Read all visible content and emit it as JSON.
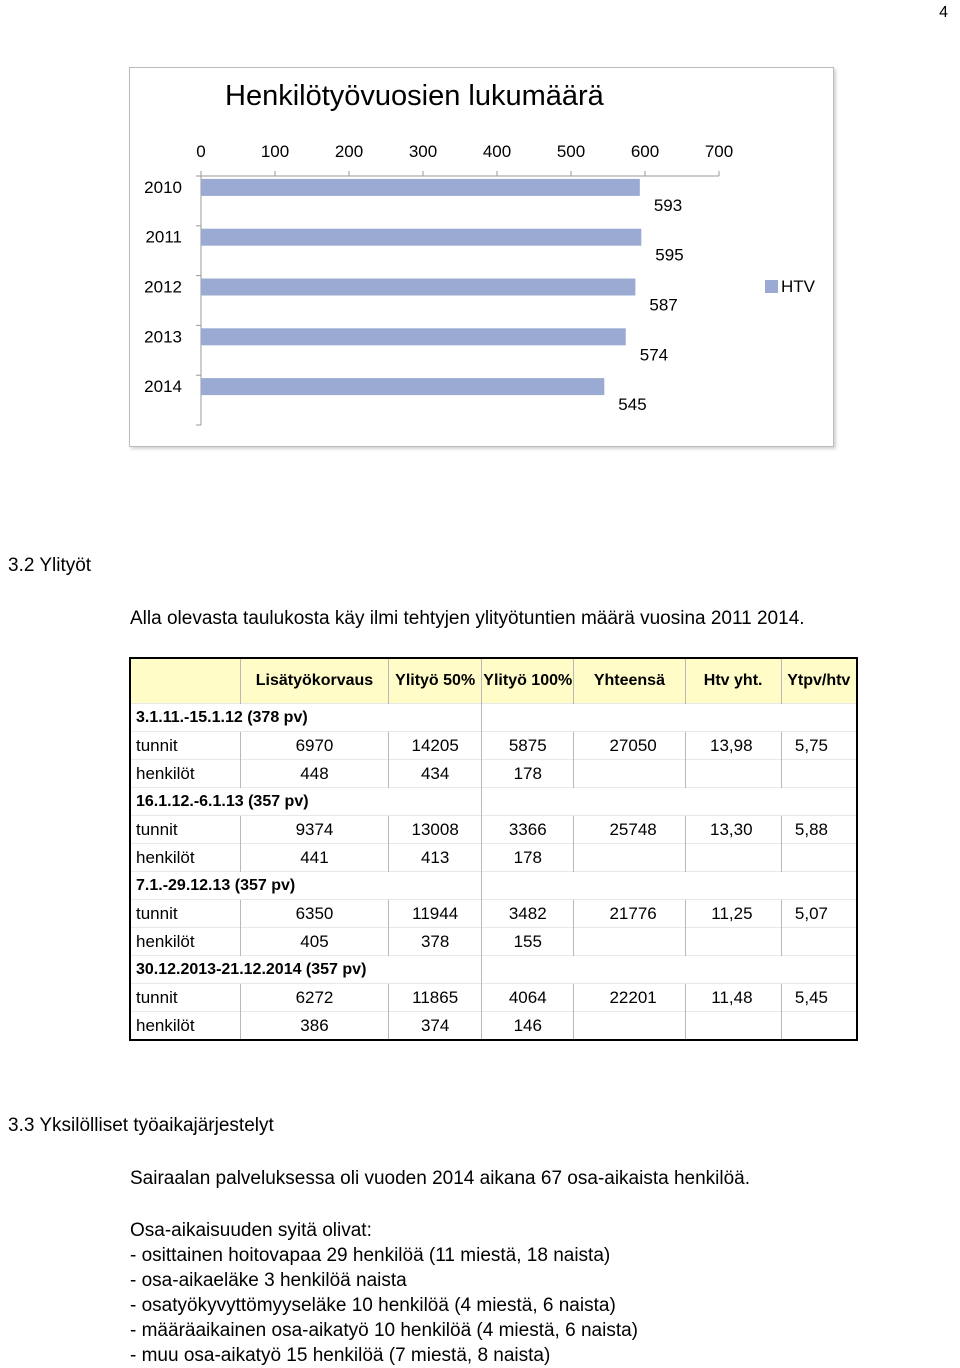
{
  "page_number": "4",
  "chart_data": {
    "type": "bar",
    "orientation": "horizontal",
    "title": "Henkilötyövuosien lukumäärä",
    "categories": [
      "2010",
      "2011",
      "2012",
      "2013",
      "2014"
    ],
    "series": [
      {
        "name": "HTV",
        "values": [
          593,
          595,
          587,
          574,
          545
        ],
        "color": "#9aaad2"
      }
    ],
    "xlim": [
      0,
      700
    ],
    "xticks": [
      "0",
      "100",
      "200",
      "300",
      "400",
      "500",
      "600",
      "700"
    ],
    "data_labels": [
      "593",
      "595",
      "587",
      "574",
      "545"
    ],
    "legend_position": "right",
    "grid": false
  },
  "section_32": {
    "heading": "3.2 Ylityöt",
    "intro": "Alla olevasta taulukosta käy ilmi tehtyjen ylityötuntien määrä vuosina 2011 2014."
  },
  "table": {
    "headers": [
      "",
      "Lisätyökorvaus",
      "Ylityö 50%",
      "Ylityö 100%",
      "Yhteensä",
      "Htv yht.",
      "Ytpv/htv"
    ],
    "groups": [
      {
        "period": "3.1.11.-15.1.12 (378 pv)",
        "tunnit": [
          "tunnit",
          "6970",
          "14205",
          "5875",
          "27050",
          "13,98",
          "5,75"
        ],
        "henkilot": [
          "henkilöt",
          "448",
          "434",
          "178",
          "",
          "",
          ""
        ]
      },
      {
        "period": "16.1.12.-6.1.13 (357 pv)",
        "tunnit": [
          "tunnit",
          "9374",
          "13008",
          "3366",
          "25748",
          "13,30",
          "5,88"
        ],
        "henkilot": [
          "henkilöt",
          "441",
          "413",
          "178",
          "",
          "",
          ""
        ]
      },
      {
        "period": "7.1.-29.12.13 (357 pv)",
        "tunnit": [
          "tunnit",
          "6350",
          "11944",
          "3482",
          "21776",
          "11,25",
          "5,07"
        ],
        "henkilot": [
          "henkilöt",
          "405",
          "378",
          "155",
          "",
          "",
          ""
        ]
      },
      {
        "period": "30.12.2013-21.12.2014 (357 pv)",
        "tunnit": [
          "tunnit",
          "6272",
          "11865",
          "4064",
          "22201",
          "11,48",
          "5,45"
        ],
        "henkilot": [
          "henkilöt",
          "386",
          "374",
          "146",
          "",
          "",
          ""
        ]
      }
    ]
  },
  "section_33": {
    "heading": "3.3 Yksilölliset työaikajärjestelyt",
    "para": "Sairaalan palveluksessa oli vuoden 2014 aikana 67 osa-aikaista henkilöä.",
    "reasons_title": "Osa-aikaisuuden syitä olivat:",
    "reasons": [
      "- osittainen hoitovapaa 29 henkilöä (11 miestä, 18 naista)",
      "- osa-aikaeläke 3 henkilöä naista",
      "- osatyökyvyttömyyseläke 10 henkilöä (4 miestä, 6 naista)",
      "- määräaikainen osa-aikatyö 10 henkilöä (4 miestä, 6 naista)",
      "- muu osa-aikatyö 15 henkilöä (7 miestä, 8 naista)"
    ]
  }
}
